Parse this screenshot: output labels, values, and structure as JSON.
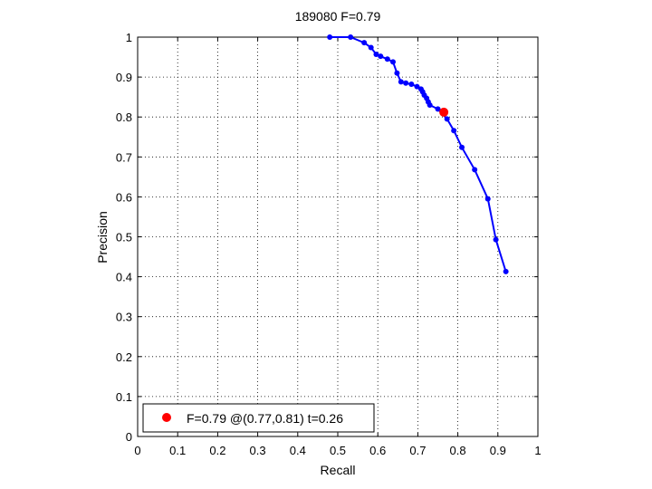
{
  "chart_data": {
    "type": "line",
    "title": "189080 F=0.79",
    "xlabel": "Recall",
    "ylabel": "Precision",
    "xlim": [
      0,
      1
    ],
    "ylim": [
      0,
      1
    ],
    "grid": true,
    "xticks": [
      "0",
      "0.1",
      "0.2",
      "0.3",
      "0.4",
      "0.5",
      "0.6",
      "0.7",
      "0.8",
      "0.9",
      "1"
    ],
    "yticks": [
      "0",
      "0.1",
      "0.2",
      "0.3",
      "0.4",
      "0.5",
      "0.6",
      "0.7",
      "0.8",
      "0.9",
      "1"
    ],
    "series": [
      {
        "color": "#0000ff",
        "points": [
          [
            0.48,
            1.0
          ],
          [
            0.532,
            1.0
          ],
          [
            0.566,
            0.986
          ],
          [
            0.583,
            0.974
          ],
          [
            0.596,
            0.957
          ],
          [
            0.607,
            0.952
          ],
          [
            0.624,
            0.945
          ],
          [
            0.638,
            0.938
          ],
          [
            0.648,
            0.91
          ],
          [
            0.658,
            0.888
          ],
          [
            0.67,
            0.885
          ],
          [
            0.684,
            0.882
          ],
          [
            0.698,
            0.876
          ],
          [
            0.708,
            0.87
          ],
          [
            0.712,
            0.863
          ],
          [
            0.716,
            0.855
          ],
          [
            0.722,
            0.847
          ],
          [
            0.726,
            0.838
          ],
          [
            0.73,
            0.83
          ],
          [
            0.75,
            0.82
          ],
          [
            0.773,
            0.795
          ],
          [
            0.79,
            0.766
          ],
          [
            0.81,
            0.724
          ],
          [
            0.842,
            0.668
          ],
          [
            0.875,
            0.595
          ],
          [
            0.895,
            0.493
          ],
          [
            0.92,
            0.413
          ]
        ]
      }
    ],
    "best_point": {
      "recall": 0.765,
      "precision": 0.812,
      "color": "#ff0000"
    },
    "legend": {
      "placement": "bottom-left",
      "entry": "F=0.79 @(0.77,0.81) t=0.26"
    }
  }
}
